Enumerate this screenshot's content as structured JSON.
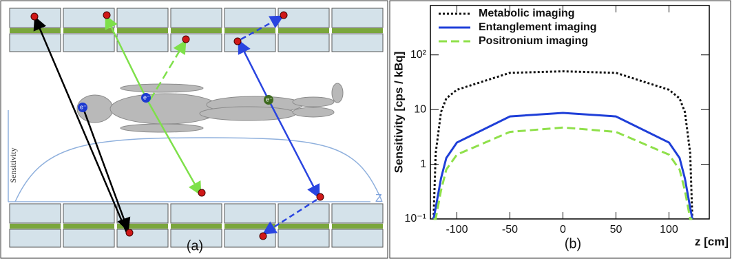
{
  "panel_a": {
    "label": "(a)",
    "axis_label": "Sensitivity",
    "z_label": "Z",
    "electron_label": "e⁻"
  },
  "chart_data": {
    "type": "line",
    "panel_label": "(b)",
    "xlabel": "z [cm]",
    "ylabel": "Sensitivity [cps / kBq]",
    "x": [
      -122,
      -120,
      -115,
      -110,
      -100,
      -50,
      0,
      50,
      100,
      110,
      115,
      120,
      122
    ],
    "series": [
      {
        "name": "Metabolic imaging",
        "color": "#111111",
        "dash": "dotted",
        "values": [
          0.1,
          1.6,
          9,
          16,
          23,
          47,
          50,
          47,
          23,
          16,
          9,
          1.6,
          0.1
        ]
      },
      {
        "name": "Entanglement imaging",
        "color": "#1f3fd8",
        "dash": "solid",
        "values": [
          0.1,
          0.16,
          0.55,
          1.3,
          2.5,
          7.5,
          8.7,
          7.5,
          2.5,
          1.3,
          0.55,
          0.16,
          0.1
        ]
      },
      {
        "name": "Positronium imaging",
        "color": "#8fe04a",
        "dash": "dashed",
        "values": [
          0.1,
          0.1,
          0.33,
          0.8,
          1.5,
          3.9,
          4.7,
          3.9,
          1.5,
          0.8,
          0.33,
          0.1,
          0.1
        ]
      }
    ],
    "xlim": [
      -125,
      138
    ],
    "ylim": [
      0.1,
      800
    ],
    "log_y": true,
    "xticks": [
      -100,
      -50,
      0,
      50,
      100
    ],
    "yticks": [
      {
        "value": 0.1,
        "label": "10⁻¹"
      },
      1,
      10,
      {
        "value": 100,
        "label": "10²"
      }
    ],
    "legend": "top-left"
  }
}
